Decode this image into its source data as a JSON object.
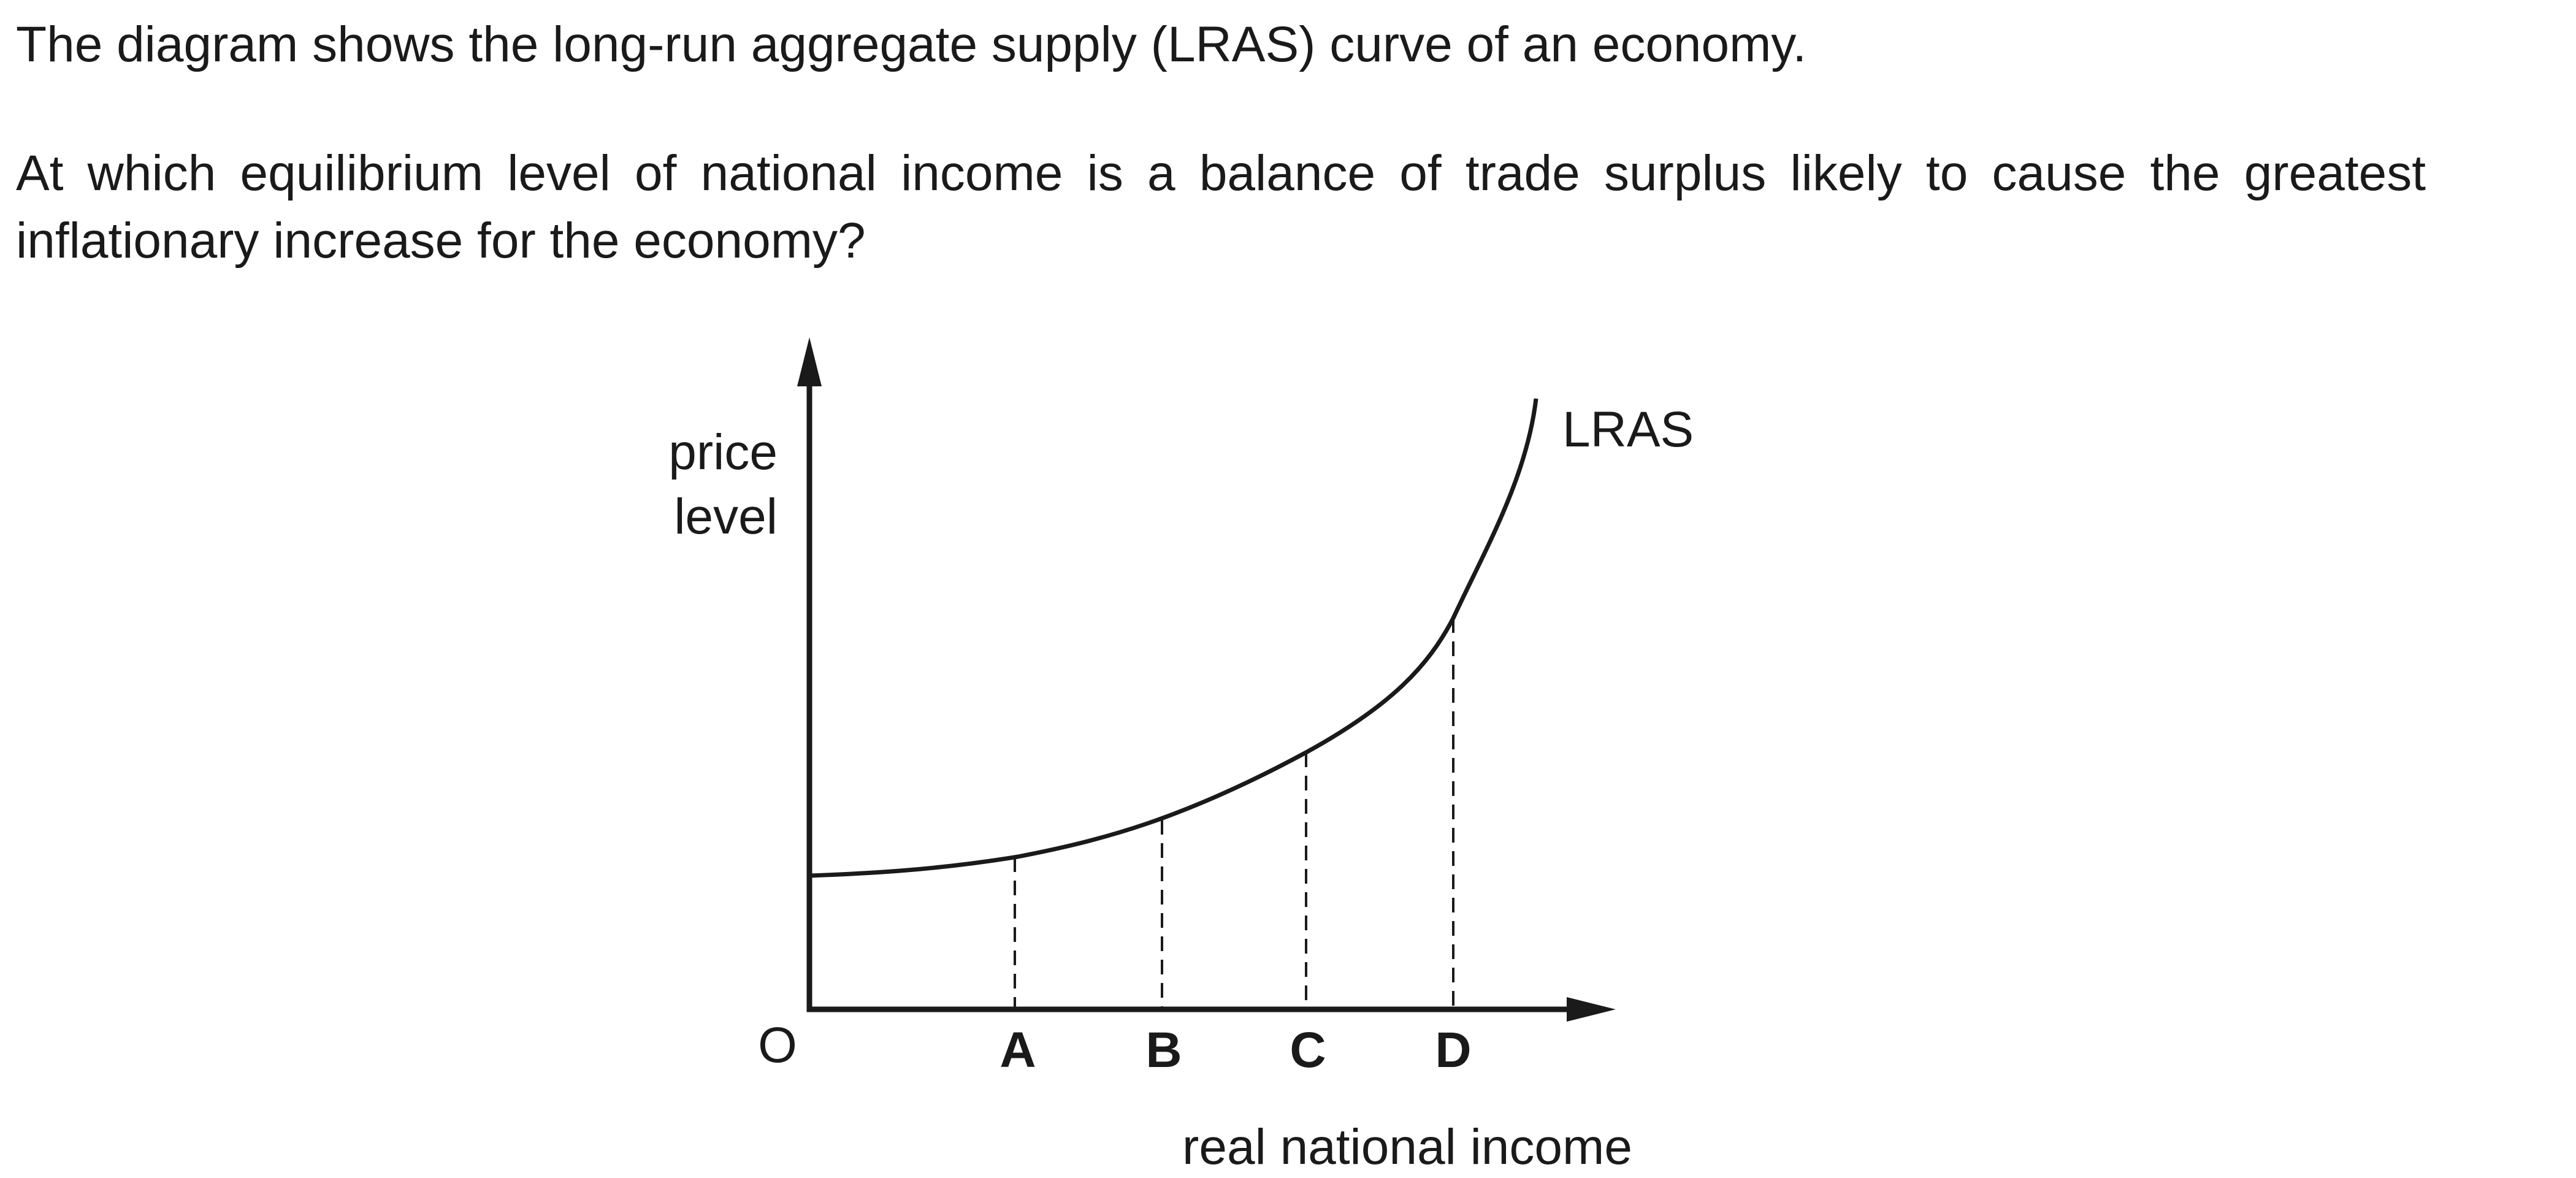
{
  "question": {
    "line1": "The diagram shows the long-run aggregate supply (LRAS) curve of an economy.",
    "line2": "At which equilibrium level of national income is a balance of trade surplus likely to cause the greatest inflationary increase for the economy?"
  },
  "diagram": {
    "y_axis_label_line1": "price",
    "y_axis_label_line2": "level",
    "x_axis_label": "real national income",
    "origin_label": "O",
    "curve_label": "LRAS",
    "points": [
      {
        "label": "A"
      },
      {
        "label": "B"
      },
      {
        "label": "C"
      },
      {
        "label": "D"
      }
    ],
    "line_color": "#1a1a1a"
  }
}
